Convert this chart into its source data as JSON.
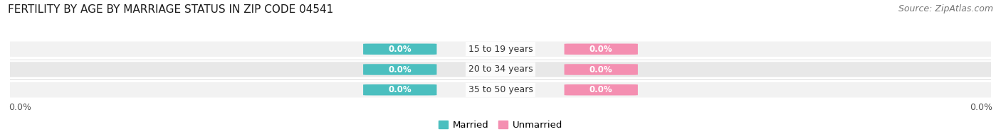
{
  "title": "FERTILITY BY AGE BY MARRIAGE STATUS IN ZIP CODE 04541",
  "source": "Source: ZipAtlas.com",
  "age_groups": [
    "15 to 19 years",
    "20 to 34 years",
    "35 to 50 years"
  ],
  "married_values": [
    "0.0%",
    "0.0%",
    "0.0%"
  ],
  "unmarried_values": [
    "0.0%",
    "0.0%",
    "0.0%"
  ],
  "married_color": "#4BBFBF",
  "unmarried_color": "#F48FB1",
  "bar_bg_color_light": "#F2F2F2",
  "bar_bg_color_dark": "#E8E8E8",
  "title_fontsize": 11,
  "source_fontsize": 9,
  "value_label_fontsize": 8.5,
  "age_label_fontsize": 9,
  "legend_fontsize": 9.5,
  "tick_fontsize": 9,
  "background_color": "#FFFFFF",
  "left_tick": "0.0%",
  "right_tick": "0.0%"
}
